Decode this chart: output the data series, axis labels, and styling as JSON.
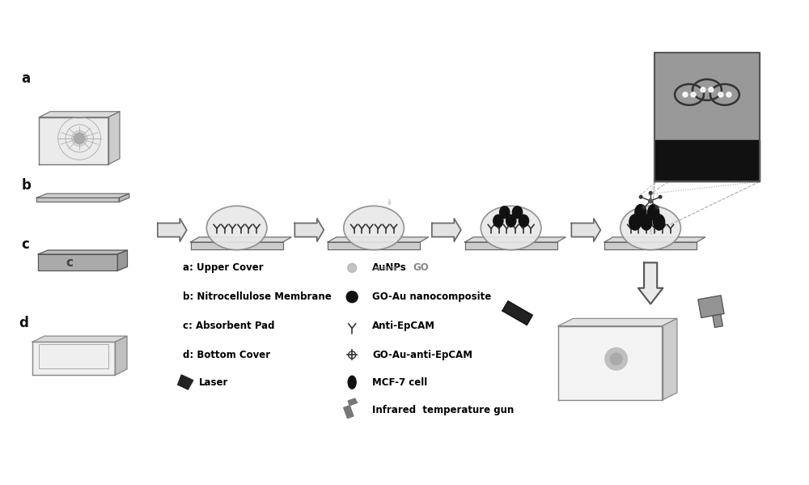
{
  "background_color": "#ffffff",
  "text_color": "#000000",
  "component_labels": [
    "a",
    "b",
    "c",
    "d"
  ],
  "legend_left": [
    "a: Upper Cover",
    "b: Nitrocellulose Membrane",
    "c: Absorbent Pad",
    "d: Bottom Cover",
    "Laser"
  ],
  "legend_right_labels": [
    "AuNPs",
    "GO",
    "GO-Au nanocomposite",
    "Anti-EpCAM",
    "GO-Au-anti-EpCAM",
    "MCF-7 cell",
    "Infrared  temperature gun"
  ],
  "arrow_fill": "#e0e0e0",
  "arrow_edge": "#555555",
  "platform_fill": "#dddddd",
  "oval_fill": "#e8e8e8",
  "cell_color": "#111111",
  "antibody_color": "#444444"
}
